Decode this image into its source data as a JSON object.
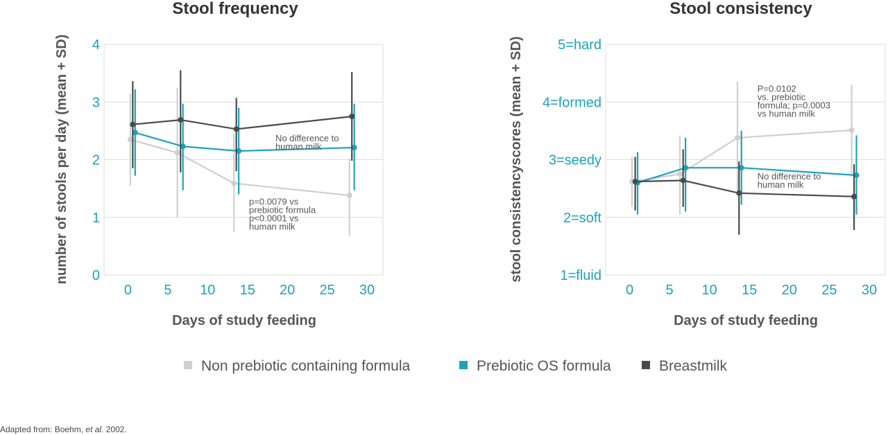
{
  "colors": {
    "non_prebiotic": "#cfcfcf",
    "prebiotic": "#1aa3ba",
    "breastmilk": "#4a4a4a",
    "tick": "#1aa3ba",
    "grid": "#dcdcdc"
  },
  "legend": {
    "items": [
      {
        "label": "Non prebiotic containing formula",
        "color": "#cfcfcf"
      },
      {
        "label": "Prebiotic OS formula",
        "color": "#1aa3ba"
      },
      {
        "label": "Breastmilk",
        "color": "#4a4a4a"
      }
    ]
  },
  "source": {
    "prefix": "Adapted from: Boehm, ",
    "italic": "et al.",
    "suffix": " 2002."
  },
  "chart_data": [
    {
      "type": "line",
      "title": "Stool frequency",
      "xlabel": "Days of study feeding",
      "ylabel": "number of stools per day (mean + SD)",
      "xlim": [
        -3,
        32
      ],
      "ylim": [
        0,
        4
      ],
      "xticks": [
        0,
        5,
        10,
        15,
        20,
        25,
        30
      ],
      "yticks": [
        0,
        1,
        2,
        3,
        4
      ],
      "ytick_labels": [
        "0",
        "1",
        "2",
        "3",
        "4"
      ],
      "grid": "horizontal",
      "series": [
        {
          "name": "Non prebiotic containing formula",
          "color": "#cfcfcf",
          "x": [
            0.3,
            6.2,
            13.3,
            27.8
          ],
          "y": [
            2.35,
            2.12,
            1.59,
            1.38
          ],
          "err_low": [
            1.55,
            1.0,
            0.75,
            0.68
          ],
          "err_high": [
            3.15,
            3.25,
            2.45,
            2.02
          ]
        },
        {
          "name": "Prebiotic OS formula",
          "color": "#1aa3ba",
          "x": [
            0.9,
            6.9,
            13.9,
            28.4
          ],
          "y": [
            2.47,
            2.23,
            2.15,
            2.21
          ],
          "err_low": [
            1.72,
            1.47,
            1.4,
            1.47
          ],
          "err_high": [
            3.22,
            2.97,
            2.9,
            2.97
          ]
        },
        {
          "name": "Breastmilk",
          "color": "#4a4a4a",
          "x": [
            0.6,
            6.6,
            13.6,
            28.1
          ],
          "y": [
            2.61,
            2.69,
            2.53,
            2.75
          ],
          "err_low": [
            1.85,
            1.78,
            1.8,
            1.98
          ],
          "err_high": [
            3.36,
            3.55,
            3.07,
            3.52
          ]
        }
      ],
      "annotations": [
        {
          "lines": [
            "No difference to",
            "human milk"
          ],
          "x": 18.5,
          "y": 2.32
        },
        {
          "lines": [
            "p=0.0079 vs",
            "prebiotic formula",
            "p<0.0001 vs",
            "human milk"
          ],
          "x": 15.2,
          "y": 1.22
        }
      ]
    },
    {
      "type": "line",
      "title": "Stool consistency",
      "xlabel": "Days of study feeding",
      "ylabel": "stool consistencyscores (mean + SD)",
      "xlim": [
        -3,
        32
      ],
      "ylim": [
        1,
        5
      ],
      "xticks": [
        0,
        5,
        10,
        15,
        20,
        25,
        30
      ],
      "yticks": [
        1,
        2,
        3,
        4,
        5
      ],
      "ytick_labels": [
        "1=fluid",
        "2=soft",
        "3=seedy",
        "4=formed",
        "5=hard"
      ],
      "grid": "horizontal",
      "series": [
        {
          "name": "Non prebiotic containing formula",
          "color": "#cfcfcf",
          "x": [
            0.3,
            6.3,
            13.5,
            27.8
          ],
          "y": [
            2.62,
            2.75,
            3.38,
            3.51
          ],
          "err_low": [
            2.18,
            2.05,
            2.38,
            2.7
          ],
          "err_high": [
            3.05,
            3.42,
            4.35,
            4.3
          ]
        },
        {
          "name": "Prebiotic OS formula",
          "color": "#1aa3ba",
          "x": [
            1.0,
            7.0,
            14.0,
            28.4
          ],
          "y": [
            2.6,
            2.86,
            2.86,
            2.73
          ],
          "err_low": [
            2.05,
            2.1,
            2.22,
            2.05
          ],
          "err_high": [
            3.13,
            3.38,
            3.5,
            3.42
          ]
        },
        {
          "name": "Breastmilk",
          "color": "#4a4a4a",
          "x": [
            0.7,
            6.7,
            13.7,
            28.1
          ],
          "y": [
            2.62,
            2.64,
            2.42,
            2.36
          ],
          "err_low": [
            2.12,
            2.18,
            1.7,
            1.78
          ],
          "err_high": [
            3.05,
            3.18,
            2.97,
            2.92
          ]
        }
      ],
      "annotations": [
        {
          "lines": [
            "P=0.0102",
            "vs. prebiotic",
            "formula;  p=0.0003",
            "vs human milk"
          ],
          "x": 16.0,
          "y": 4.18
        },
        {
          "lines": [
            "No difference to",
            "human milk"
          ],
          "x": 16.0,
          "y": 2.66
        }
      ]
    }
  ]
}
